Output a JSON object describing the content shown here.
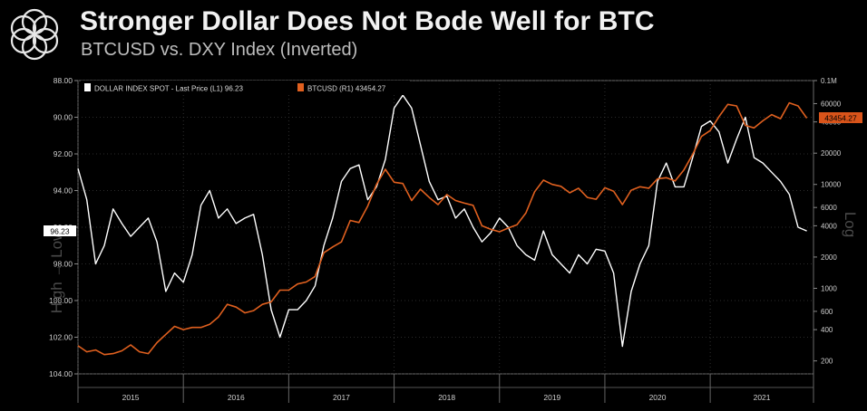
{
  "header": {
    "title": "Stronger Dollar Does Not Bode Well for BTC",
    "subtitle": "BTCUSD vs. DXY Index (Inverted)"
  },
  "chart_data": {
    "type": "line",
    "legend": {
      "dxy": "DOLLAR INDEX SPOT - Last Price (L1) 96.23",
      "btc": "BTCUSD (R1) 43454.27"
    },
    "left_axis": {
      "label": "High → Low",
      "inverted": true,
      "range": [
        88,
        104
      ],
      "ticks": [
        "88.00",
        "90.00",
        "92.00",
        "94.00",
        "96.00",
        "98.00",
        "100.00",
        "102.00",
        "104.00"
      ],
      "last_value_tag": "96.23"
    },
    "right_axis": {
      "label": "Log",
      "scale": "log",
      "range": [
        150,
        100000
      ],
      "ticks": [
        {
          "v": 100000,
          "label": "0.1M"
        },
        {
          "v": 60000,
          "label": "60000"
        },
        {
          "v": 40000,
          "label": "40000"
        },
        {
          "v": 20000,
          "label": "20000"
        },
        {
          "v": 10000,
          "label": "10000"
        },
        {
          "v": 6000,
          "label": "6000"
        },
        {
          "v": 4000,
          "label": "4000"
        },
        {
          "v": 2000,
          "label": "2000"
        },
        {
          "v": 1000,
          "label": "1000"
        },
        {
          "v": 600,
          "label": "600"
        },
        {
          "v": 400,
          "label": "400"
        },
        {
          "v": 200,
          "label": "200"
        }
      ],
      "last_value_tag": "43454.27"
    },
    "x_axis": {
      "labels": [
        "2015",
        "2016",
        "2017",
        "2018",
        "2019",
        "2020",
        "2021"
      ]
    },
    "colors": {
      "dxy": "#ffffff",
      "btc": "#e0601f",
      "btc_tag": "#d9541a"
    },
    "series": [
      {
        "name": "DOLLAR INDEX SPOT - Last Price (L1)",
        "key": "dxy",
        "x": [
          "2015-01",
          "2015-02",
          "2015-03",
          "2015-04",
          "2015-05",
          "2015-06",
          "2015-07",
          "2015-08",
          "2015-09",
          "2015-10",
          "2015-11",
          "2015-12",
          "2016-01",
          "2016-02",
          "2016-03",
          "2016-04",
          "2016-05",
          "2016-06",
          "2016-07",
          "2016-08",
          "2016-09",
          "2016-10",
          "2016-11",
          "2016-12",
          "2017-01",
          "2017-02",
          "2017-03",
          "2017-04",
          "2017-05",
          "2017-06",
          "2017-07",
          "2017-08",
          "2017-09",
          "2017-10",
          "2017-11",
          "2017-12",
          "2018-01",
          "2018-02",
          "2018-03",
          "2018-04",
          "2018-05",
          "2018-06",
          "2018-07",
          "2018-08",
          "2018-09",
          "2018-10",
          "2018-11",
          "2018-12",
          "2019-01",
          "2019-02",
          "2019-03",
          "2019-04",
          "2019-05",
          "2019-06",
          "2019-07",
          "2019-08",
          "2019-09",
          "2019-10",
          "2019-11",
          "2019-12",
          "2020-01",
          "2020-02",
          "2020-03",
          "2020-04",
          "2020-05",
          "2020-06",
          "2020-07",
          "2020-08",
          "2020-09",
          "2020-10",
          "2020-11",
          "2020-12",
          "2021-01",
          "2021-02",
          "2021-03",
          "2021-04",
          "2021-05",
          "2021-06",
          "2021-07",
          "2021-08",
          "2021-09",
          "2021-10",
          "2021-11",
          "2021-12"
        ],
        "values": [
          92.8,
          94.5,
          98.0,
          97.0,
          95.0,
          95.8,
          96.5,
          96.0,
          95.5,
          96.8,
          99.5,
          98.5,
          99.0,
          97.5,
          94.8,
          94.0,
          95.5,
          95.0,
          95.8,
          95.5,
          95.3,
          97.5,
          100.5,
          102.0,
          100.5,
          100.5,
          100.0,
          99.2,
          97.0,
          95.5,
          93.5,
          92.8,
          92.6,
          94.5,
          93.8,
          92.3,
          89.5,
          88.8,
          89.5,
          91.5,
          93.5,
          94.5,
          94.3,
          95.5,
          95.0,
          96.0,
          96.8,
          96.3,
          95.5,
          96.0,
          97.0,
          97.5,
          97.8,
          96.2,
          97.5,
          98.0,
          98.5,
          97.5,
          98.0,
          97.2,
          97.3,
          98.5,
          102.5,
          99.5,
          98.0,
          97.0,
          93.5,
          92.5,
          93.8,
          93.8,
          92.2,
          90.5,
          90.2,
          90.8,
          92.5,
          91.2,
          90.0,
          92.2,
          92.5,
          93.0,
          93.5,
          94.2,
          96.0,
          96.2
        ]
      },
      {
        "name": "BTCUSD (R1)",
        "key": "btc",
        "x": [
          "2015-01",
          "2015-02",
          "2015-03",
          "2015-04",
          "2015-05",
          "2015-06",
          "2015-07",
          "2015-08",
          "2015-09",
          "2015-10",
          "2015-11",
          "2015-12",
          "2016-01",
          "2016-02",
          "2016-03",
          "2016-04",
          "2016-05",
          "2016-06",
          "2016-07",
          "2016-08",
          "2016-09",
          "2016-10",
          "2016-11",
          "2016-12",
          "2017-01",
          "2017-02",
          "2017-03",
          "2017-04",
          "2017-05",
          "2017-06",
          "2017-07",
          "2017-08",
          "2017-09",
          "2017-10",
          "2017-11",
          "2017-12",
          "2018-01",
          "2018-02",
          "2018-03",
          "2018-04",
          "2018-05",
          "2018-06",
          "2018-07",
          "2018-08",
          "2018-09",
          "2018-10",
          "2018-11",
          "2018-12",
          "2019-01",
          "2019-02",
          "2019-03",
          "2019-04",
          "2019-05",
          "2019-06",
          "2019-07",
          "2019-08",
          "2019-09",
          "2019-10",
          "2019-11",
          "2019-12",
          "2020-01",
          "2020-02",
          "2020-03",
          "2020-04",
          "2020-05",
          "2020-06",
          "2020-07",
          "2020-08",
          "2020-09",
          "2020-10",
          "2020-11",
          "2020-12",
          "2021-01",
          "2021-02",
          "2021-03",
          "2021-04",
          "2021-05",
          "2021-06",
          "2021-07",
          "2021-08",
          "2021-09",
          "2021-10",
          "2021-11",
          "2021-12"
        ],
        "values": [
          280,
          245,
          255,
          230,
          235,
          250,
          285,
          245,
          235,
          300,
          360,
          430,
          400,
          420,
          420,
          450,
          530,
          700,
          660,
          580,
          610,
          700,
          740,
          960,
          960,
          1100,
          1150,
          1300,
          2200,
          2500,
          2800,
          4500,
          4300,
          6200,
          10000,
          14000,
          10500,
          10200,
          7000,
          9000,
          7500,
          6400,
          8000,
          7000,
          6600,
          6300,
          4000,
          3700,
          3500,
          3800,
          4100,
          5300,
          8500,
          11000,
          10000,
          9600,
          8300,
          9200,
          7500,
          7200,
          9300,
          8600,
          6400,
          8800,
          9500,
          9200,
          11300,
          11600,
          10800,
          13800,
          19500,
          29000,
          33000,
          45000,
          59000,
          57000,
          37000,
          35000,
          41000,
          47000,
          43000,
          61000,
          57000,
          43454
        ]
      }
    ]
  }
}
